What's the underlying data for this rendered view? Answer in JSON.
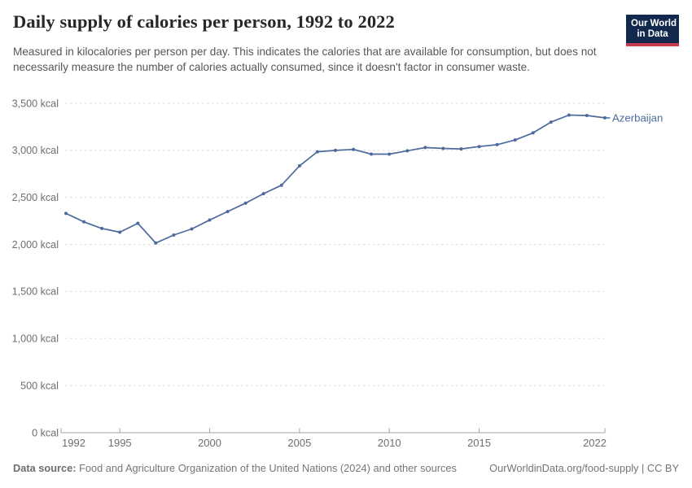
{
  "header": {
    "title": "Daily supply of calories per person, 1992 to 2022",
    "subtitle": "Measured in kilocalories per person per day. This indicates the calories that are available for consumption, but does not necessarily measure the number of calories actually consumed, since it doesn't factor in consumer waste.",
    "logo": {
      "line1": "Our World",
      "line2": "in Data",
      "bg_color": "#12294d",
      "stripe_color": "#c63d4f"
    }
  },
  "chart_data": {
    "type": "line",
    "title": "Daily supply of calories per person, 1992 to 2022",
    "xlabel": "",
    "ylabel": "kcal per person per day",
    "xlim": [
      1992,
      2022
    ],
    "ylim": [
      0,
      3500
    ],
    "grid": "horizontal-dashed",
    "legend_position": "end-of-line-label",
    "x": [
      1992,
      1993,
      1994,
      1995,
      1996,
      1997,
      1998,
      1999,
      2000,
      2001,
      2002,
      2003,
      2004,
      2005,
      2006,
      2007,
      2008,
      2009,
      2010,
      2011,
      2012,
      2013,
      2014,
      2015,
      2016,
      2017,
      2018,
      2019,
      2020,
      2021,
      2022
    ],
    "series": [
      {
        "name": "Azerbaijan",
        "color": "#4c6a9c",
        "values": [
          2330,
          2240,
          2170,
          2130,
          2225,
          2015,
          2100,
          2165,
          2260,
          2350,
          2440,
          2540,
          2630,
          2835,
          2985,
          3000,
          3010,
          2960,
          2960,
          2995,
          3030,
          3020,
          3015,
          3040,
          3060,
          3110,
          3185,
          3300,
          3375,
          3370,
          3345
        ]
      }
    ],
    "yticks": [
      {
        "v": 0,
        "label": "0 kcal"
      },
      {
        "v": 500,
        "label": "500 kcal"
      },
      {
        "v": 1000,
        "label": "1,000 kcal"
      },
      {
        "v": 1500,
        "label": "1,500 kcal"
      },
      {
        "v": 2000,
        "label": "2,000 kcal"
      },
      {
        "v": 2500,
        "label": "2,500 kcal"
      },
      {
        "v": 3000,
        "label": "3,000 kcal"
      },
      {
        "v": 3500,
        "label": "3,500 kcal"
      }
    ],
    "xticks": [
      {
        "year": 1992,
        "label": "1992"
      },
      {
        "year": 1995,
        "label": "1995"
      },
      {
        "year": 2000,
        "label": "2000"
      },
      {
        "year": 2005,
        "label": "2005"
      },
      {
        "year": 2010,
        "label": "2010"
      },
      {
        "year": 2015,
        "label": "2015"
      },
      {
        "year": 2022,
        "label": "2022"
      }
    ],
    "colors": {
      "line": "#4c6a9c",
      "gridline": "#dadada",
      "axis": "#a1a1a1",
      "tick_label": "#6e6e6e"
    }
  },
  "footer": {
    "source_label": "Data source:",
    "source_text": " Food and Agriculture Organization of the United Nations (2024) and other sources",
    "credit": "OurWorldinData.org/food-supply | CC BY"
  }
}
